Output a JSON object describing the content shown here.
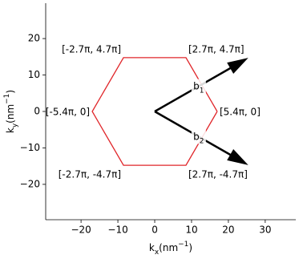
{
  "chart_data": {
    "type": "line",
    "x_label": {
      "text": "k",
      "sub": "x",
      "post": "(nm",
      "sup": "−1",
      "end": ")"
    },
    "y_label": {
      "text": "k",
      "sub": "y",
      "post": "(nm",
      "sup": "−1",
      "end": ")"
    },
    "xlim": [
      -29.6,
      38.3
    ],
    "ylim": [
      -29.7,
      29.7
    ],
    "xticks": [
      {
        "value": -20,
        "label": "−20"
      },
      {
        "value": -10,
        "label": "−10"
      },
      0,
      10,
      20,
      30
    ],
    "yticks": [
      {
        "value": -20,
        "label": "−20"
      },
      {
        "value": -10,
        "label": "−10"
      },
      0,
      10,
      20
    ],
    "series": [
      {
        "color": "#e0262a",
        "x": [
          16.96,
          8.48,
          -8.48,
          -16.96,
          -8.48,
          8.48,
          16.96
        ],
        "values": [
          0,
          14.77,
          14.77,
          0,
          -14.77,
          -14.77,
          0
        ],
        "point_labels": [
          "[5.4π, 0]",
          "[2.7π, 4.7π]",
          "[-2.7π, 4.7π]",
          "[-5.4π, 0]",
          "[-2.7π, -4.7π]",
          "[2.7π, -4.7π]",
          null
        ]
      }
    ],
    "arrows": [
      {
        "color": "#000000",
        "x": [
          0,
          25.4
        ],
        "values": [
          0,
          14.7
        ],
        "label": {
          "text": "b",
          "sub": "1"
        }
      },
      {
        "color": "#000000",
        "x": [
          0,
          25.4
        ],
        "values": [
          0,
          -14.7
        ],
        "label": {
          "text": "b",
          "sub": "2"
        }
      }
    ]
  }
}
